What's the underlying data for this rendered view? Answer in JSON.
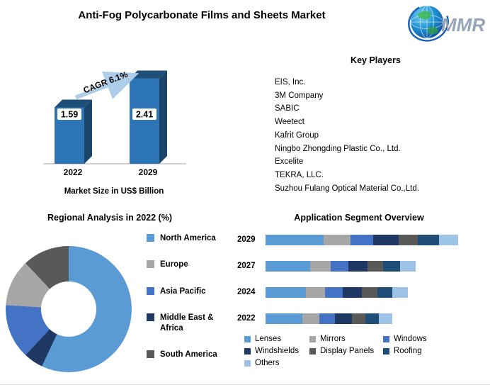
{
  "page": {
    "title": "Anti-Fog Polycarbonate Films and Sheets Market"
  },
  "logo": {
    "text": "MMR"
  },
  "key_players": {
    "heading": "Key Players",
    "items": [
      "EIS, Inc.",
      "3M Company",
      "SABIC",
      "Weetect",
      "Kafrit Group",
      "Ningbo Zhongding Plastic Co., Ltd.",
      "Excelite",
      "TEKRA, LLC.",
      "Suzhou Fulang Optical Material Co.,Ltd."
    ]
  },
  "chart_data": [
    {
      "type": "bar",
      "name": "market-size",
      "title": "Market Size in US$ Billion",
      "annotation": "CAGR 6.1%",
      "categories": [
        "2022",
        "2029"
      ],
      "values": [
        1.59,
        2.41
      ],
      "ylim": [
        0,
        3
      ],
      "bar_color": "#2E75B6",
      "bar_top_color": "#1F4E79",
      "bar_side_color": "#1A4569",
      "arrow_color": "#AECDE8",
      "effect": "3d"
    },
    {
      "type": "pie",
      "name": "regional-analysis",
      "title": "Regional Analysis in 2022 (%)",
      "donut": true,
      "legend_position": "right",
      "segments": [
        {
          "label": "North America",
          "value": 57,
          "color": "#5B9BD5"
        },
        {
          "label": "Europe",
          "value": 12,
          "color": "#A6A6A6"
        },
        {
          "label": "Asia Pacific",
          "value": 14,
          "color": "#4472C4"
        },
        {
          "label": "Middle East & Africa",
          "value": 5,
          "color": "#1F3864"
        },
        {
          "label": "South America",
          "value": 12,
          "color": "#595959"
        }
      ],
      "clockwise_draw_order": [
        0,
        3,
        2,
        1,
        4
      ]
    },
    {
      "type": "stacked-bar",
      "name": "application-segments",
      "title": "Application Segment Overview",
      "orientation": "horizontal",
      "categories": [
        "2029",
        "2027",
        "2024",
        "2022"
      ],
      "xmax": 100,
      "series": [
        {
          "name": "Lenses",
          "color": "#5B9BD5",
          "values": [
            30,
            23,
            21,
            19
          ]
        },
        {
          "name": "Mirrors",
          "color": "#A6A6A6",
          "values": [
            14,
            11,
            10,
            9
          ]
        },
        {
          "name": "Windows",
          "color": "#4472C4",
          "values": [
            12,
            9,
            9,
            8
          ]
        },
        {
          "name": "Windshields",
          "color": "#1F3864",
          "values": [
            13,
            10,
            10,
            9
          ]
        },
        {
          "name": "Display Panels",
          "color": "#595959",
          "values": [
            10,
            8,
            8,
            7
          ]
        },
        {
          "name": "Roofing",
          "color": "#1F4E79",
          "values": [
            11,
            9,
            8,
            7
          ]
        },
        {
          "name": "Others",
          "color": "#9DC3E6",
          "values": [
            10,
            8,
            8,
            7
          ]
        }
      ]
    }
  ]
}
